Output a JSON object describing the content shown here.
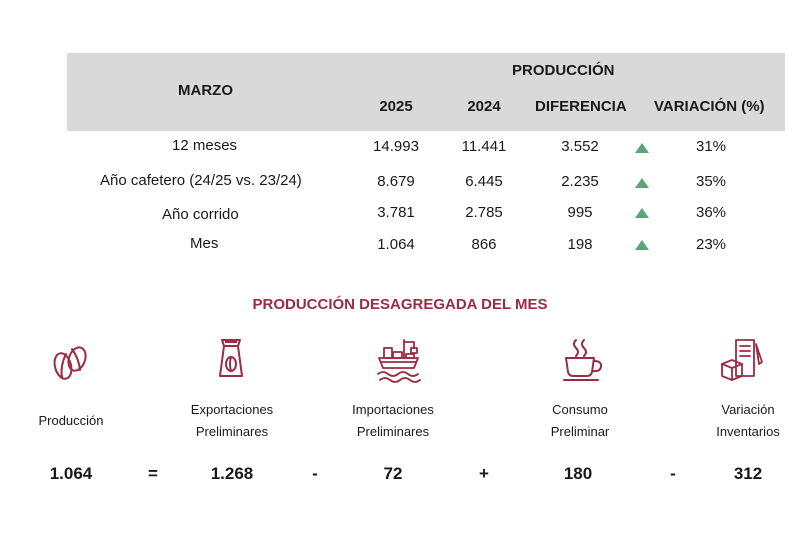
{
  "table": {
    "row_header": "MARZO",
    "group_header": "PRODUCCIÓN",
    "columns": [
      "2025",
      "2024",
      "DIFERENCIA",
      "VARIACIÓN (%)"
    ],
    "rows": [
      {
        "label": "12 meses",
        "v2025": "14.993",
        "v2024": "11.441",
        "diff": "3.552",
        "var": "31%"
      },
      {
        "label": "Año cafetero (24/25 vs. 23/24)",
        "v2025": "8.679",
        "v2024": "6.445",
        "diff": "2.235",
        "var": "35%"
      },
      {
        "label": "Año corrido",
        "v2025": "3.781",
        "v2024": "2.785",
        "diff": "995",
        "var": "36%"
      },
      {
        "label": "Mes",
        "v2025": "1.064",
        "v2024": "866",
        "diff": "198",
        "var": "23%"
      }
    ],
    "trend_color": "#5fa37a"
  },
  "breakdown": {
    "title": "PRODUCCIÓN DESAGREGADA DEL MES",
    "accent_color": "#9b2c43",
    "items": [
      {
        "icon": "coffee-bean-icon",
        "label_line1": "Producción",
        "label_line2": "",
        "value": "1.064"
      },
      {
        "icon": "coffee-bag-icon",
        "label_line1": "Exportaciones",
        "label_line2": "Preliminares",
        "value": "1.268"
      },
      {
        "icon": "cargo-ship-icon",
        "label_line1": "Importaciones",
        "label_line2": "Preliminares",
        "value": "72"
      },
      {
        "icon": "coffee-cup-icon",
        "label_line1": "Consumo",
        "label_line2": "Preliminar",
        "value": "180"
      },
      {
        "icon": "inventory-icon",
        "label_line1": "Variación",
        "label_line2": "Inventarios",
        "value": "312"
      }
    ],
    "operators": [
      "=",
      "-",
      "+",
      "-"
    ]
  }
}
